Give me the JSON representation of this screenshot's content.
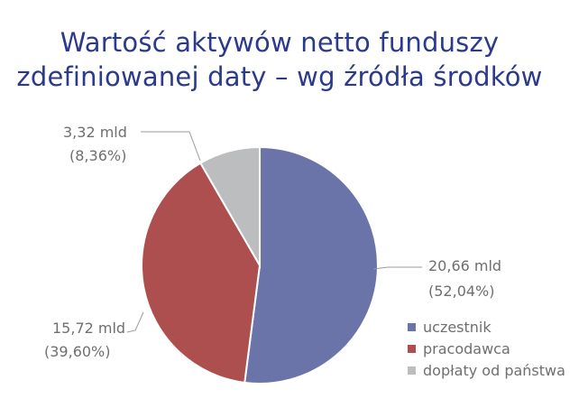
{
  "chart_data": {
    "type": "pie",
    "title": [
      "Wartość aktywów netto funduszy",
      "zdefiniowanej daty – wg źródła środków"
    ],
    "slices": [
      {
        "name": "uczestnik",
        "value": 20.66,
        "value_label": "20,66 mld",
        "percent_label": "(52,04%)",
        "percent": 52.04,
        "color": "#6a74a8"
      },
      {
        "name": "pracodawca",
        "value": 15.72,
        "value_label": "15,72 mld",
        "percent_label": "(39,60%)",
        "percent": 39.6,
        "color": "#ad4f4e"
      },
      {
        "name": "dopłaty od państwa",
        "value": 3.32,
        "value_label": "3,32 mld",
        "percent_label": "(8,36%)",
        "percent": 8.36,
        "color": "#bcbdbf"
      }
    ],
    "legend_position": "bottom-right",
    "start_angle": "12 o'clock",
    "direction": "clockwise"
  }
}
